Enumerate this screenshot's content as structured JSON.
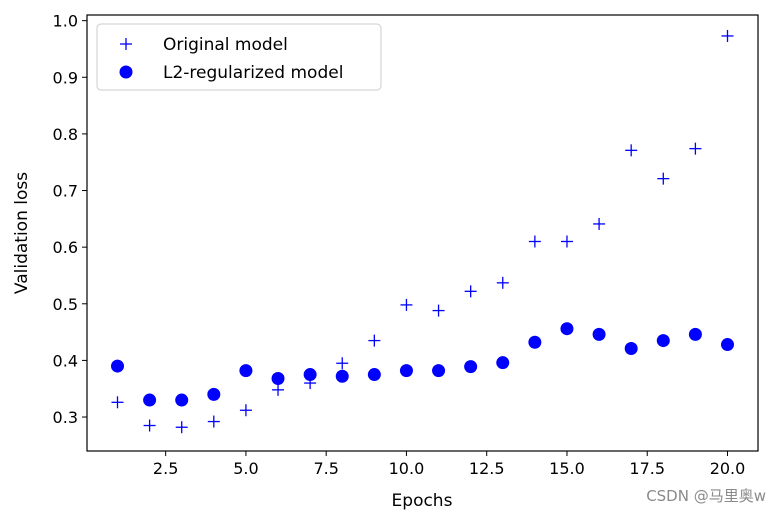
{
  "chart_data": {
    "type": "scatter",
    "title": "",
    "xlabel": "Epochs",
    "ylabel": "Validation loss",
    "xlim": [
      0.05,
      20.95
    ],
    "ylim": [
      0.24,
      1.01
    ],
    "xticks": [
      2.5,
      5.0,
      7.5,
      10.0,
      12.5,
      15.0,
      17.5,
      20.0
    ],
    "xtick_labels": [
      "2.5",
      "5.0",
      "7.5",
      "10.0",
      "12.5",
      "15.0",
      "17.5",
      "20.0"
    ],
    "yticks": [
      0.3,
      0.4,
      0.5,
      0.6,
      0.7,
      0.8,
      0.9,
      1.0
    ],
    "ytick_labels": [
      "0.3",
      "0.4",
      "0.5",
      "0.6",
      "0.7",
      "0.8",
      "0.9",
      "1.0"
    ],
    "grid": false,
    "legend_position": "top-left",
    "series": [
      {
        "name": "Original model",
        "marker": "plus",
        "color": "#0000ff",
        "x": [
          1,
          2,
          3,
          4,
          5,
          6,
          7,
          8,
          9,
          10,
          11,
          12,
          13,
          14,
          15,
          16,
          17,
          18,
          19,
          20
        ],
        "y": [
          0.326,
          0.285,
          0.282,
          0.292,
          0.312,
          0.348,
          0.36,
          0.395,
          0.435,
          0.498,
          0.488,
          0.522,
          0.537,
          0.61,
          0.61,
          0.641,
          0.771,
          0.721,
          0.774,
          0.973
        ]
      },
      {
        "name": "L2-regularized model",
        "marker": "circle",
        "color": "#0000ff",
        "x": [
          1,
          2,
          3,
          4,
          5,
          6,
          7,
          8,
          9,
          10,
          11,
          12,
          13,
          14,
          15,
          16,
          17,
          18,
          19,
          20
        ],
        "y": [
          0.39,
          0.33,
          0.33,
          0.34,
          0.382,
          0.368,
          0.375,
          0.372,
          0.375,
          0.382,
          0.382,
          0.389,
          0.396,
          0.432,
          0.456,
          0.446,
          0.421,
          0.435,
          0.446,
          0.428
        ]
      }
    ]
  },
  "watermark": "CSDN @马里奥w"
}
